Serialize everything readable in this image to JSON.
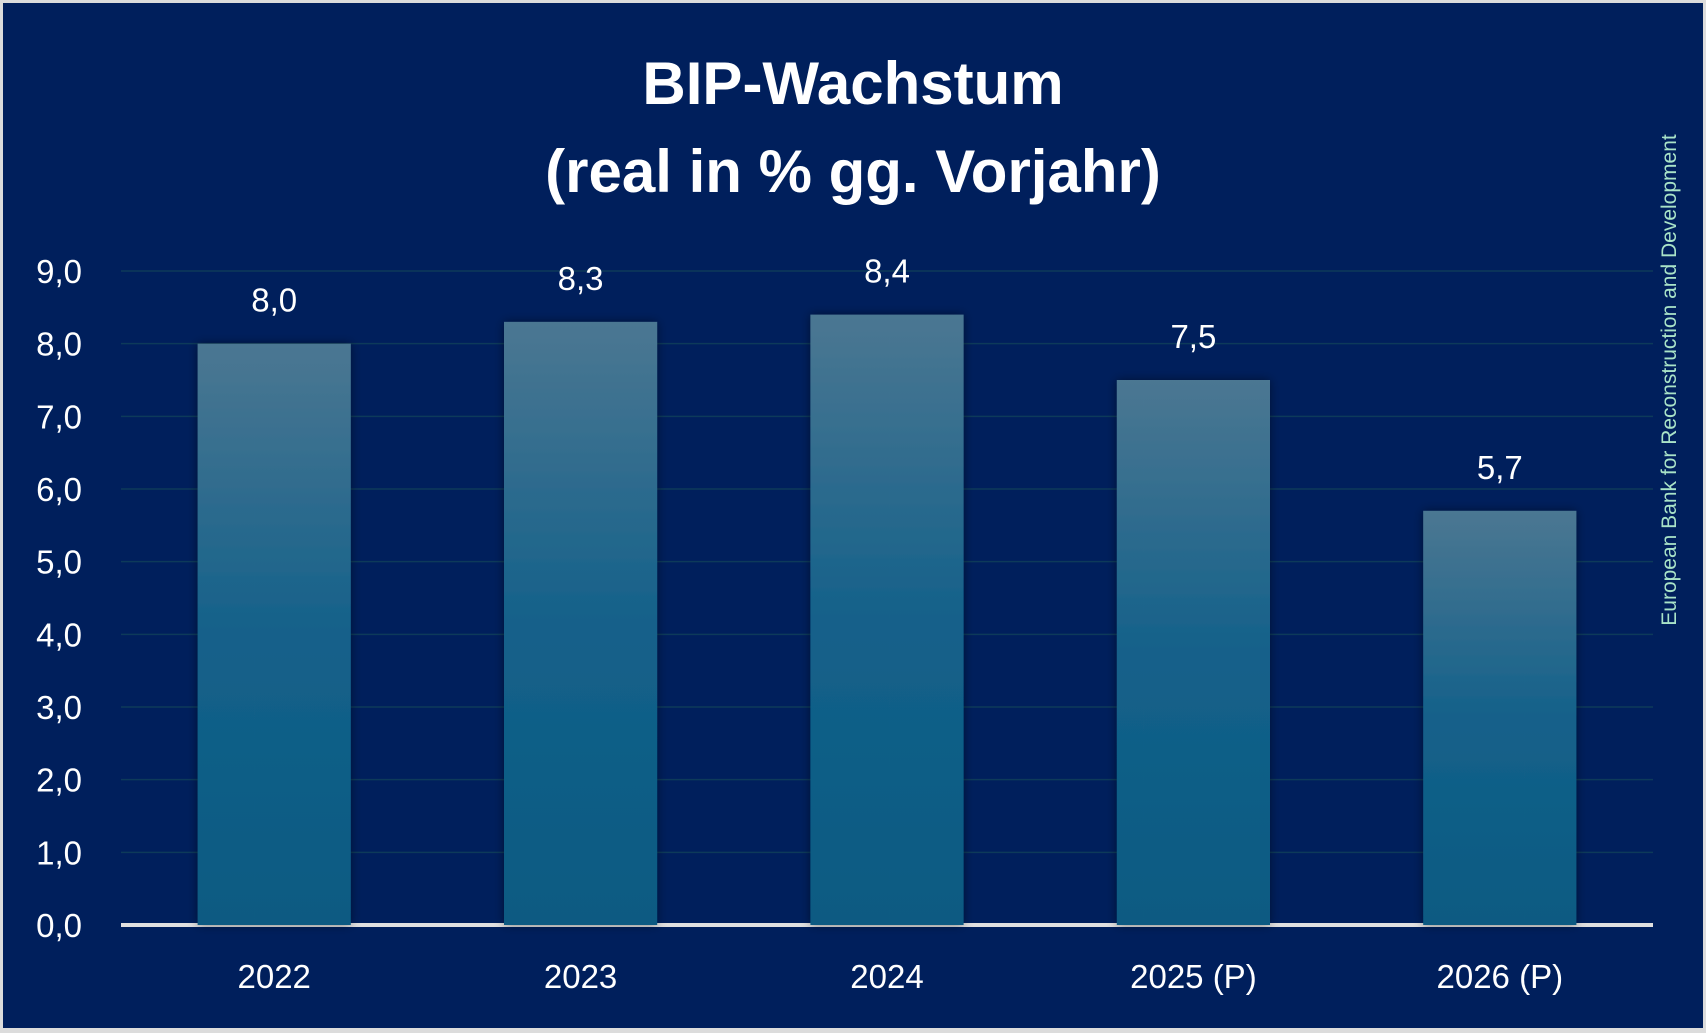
{
  "chart_data": {
    "type": "bar",
    "title": "BIP-Wachstum",
    "subtitle": "(real in % gg. Vorjahr)",
    "categories": [
      "2022",
      "2023",
      "2024",
      "2025 (P)",
      "2026 (P)"
    ],
    "values": [
      8.0,
      8.3,
      8.4,
      7.5,
      5.7
    ],
    "data_labels": [
      "8,0",
      "8,3",
      "8,4",
      "7,5",
      "5,7"
    ],
    "yticks": [
      0,
      1,
      2,
      3,
      4,
      5,
      6,
      7,
      8,
      9
    ],
    "ytick_labels": [
      "0,0",
      "1,0",
      "2,0",
      "3,0",
      "4,0",
      "5,0",
      "6,0",
      "7,0",
      "8,0",
      "9,0"
    ],
    "ylim": [
      0,
      9
    ],
    "xlabel": "",
    "ylabel": "",
    "grid": true,
    "source": "European Bank for Reconstruction and Development",
    "colors": {
      "background": "#001f5c",
      "bar_top": "#4b7792",
      "bar_bottom": "#0a5a82",
      "axis": "#e0e0e0",
      "grid": "#0d3a5a",
      "source": "#a9e3c8"
    }
  }
}
